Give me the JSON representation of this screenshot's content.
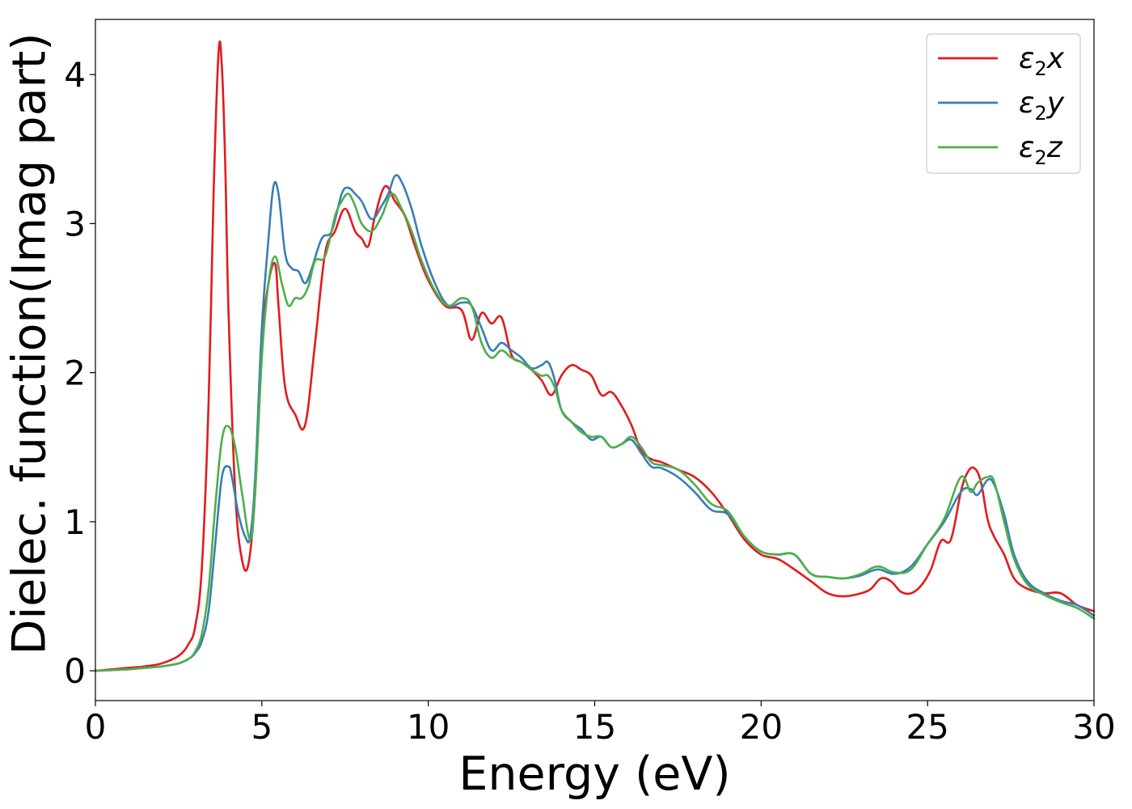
{
  "chart_data": {
    "type": "line",
    "title": "",
    "xlabel": "Energy (eV)",
    "ylabel": "Dielec. function(Imag part)",
    "xlim": [
      0,
      30
    ],
    "ylim": [
      -0.2,
      4.37
    ],
    "xticks": [
      0,
      5,
      10,
      15,
      20,
      25,
      30
    ],
    "xtick_labels": [
      "0",
      "5",
      "10",
      "15",
      "20",
      "25",
      "30"
    ],
    "yticks": [
      0,
      1,
      2,
      3,
      4
    ],
    "ytick_labels": [
      "0",
      "1",
      "2",
      "3",
      "4"
    ],
    "grid": false,
    "legend_position": "top-right",
    "series": [
      {
        "name": "ε₂x",
        "legend_base": "ε",
        "legend_sub": "2",
        "legend_suffix": "x",
        "color": "#e41a1c",
        "x": [
          0,
          1,
          1.5,
          2,
          2.5,
          2.8,
          3.0,
          3.2,
          3.4,
          3.55,
          3.7,
          3.8,
          3.9,
          4.0,
          4.2,
          4.4,
          4.6,
          4.8,
          5.0,
          5.2,
          5.4,
          5.5,
          5.7,
          6.0,
          6.3,
          6.6,
          6.9,
          7.2,
          7.5,
          7.8,
          8.0,
          8.2,
          8.4,
          8.7,
          9.0,
          9.3,
          9.6,
          10.0,
          10.5,
          11.0,
          11.3,
          11.6,
          11.9,
          12.2,
          12.5,
          12.8,
          13.1,
          13.4,
          13.7,
          14.0,
          14.3,
          14.6,
          14.9,
          15.2,
          15.5,
          15.8,
          16.1,
          16.4,
          16.7,
          17.0,
          17.5,
          18.0,
          18.5,
          19.0,
          19.5,
          20.0,
          20.5,
          21.0,
          21.5,
          22.0,
          22.5,
          23.0,
          23.3,
          23.6,
          23.9,
          24.2,
          24.5,
          24.8,
          25.1,
          25.4,
          25.7,
          26.0,
          26.2,
          26.4,
          26.6,
          26.8,
          27.0,
          27.3,
          27.6,
          28.0,
          28.5,
          29.0,
          29.5,
          30.0
        ],
        "y": [
          0.0,
          0.02,
          0.03,
          0.05,
          0.1,
          0.18,
          0.3,
          0.7,
          1.8,
          3.2,
          4.15,
          4.05,
          3.4,
          2.4,
          1.2,
          0.75,
          0.72,
          1.2,
          2.2,
          2.6,
          2.73,
          2.45,
          1.9,
          1.72,
          1.65,
          2.2,
          2.8,
          2.95,
          3.1,
          2.95,
          2.9,
          2.85,
          3.05,
          3.25,
          3.15,
          3.05,
          2.85,
          2.62,
          2.45,
          2.42,
          2.22,
          2.4,
          2.33,
          2.37,
          2.12,
          2.07,
          2.02,
          1.95,
          1.85,
          1.98,
          2.05,
          2.02,
          1.98,
          1.85,
          1.87,
          1.78,
          1.65,
          1.48,
          1.42,
          1.4,
          1.35,
          1.3,
          1.2,
          1.05,
          0.88,
          0.78,
          0.75,
          0.68,
          0.6,
          0.52,
          0.5,
          0.52,
          0.55,
          0.62,
          0.6,
          0.53,
          0.52,
          0.57,
          0.68,
          0.87,
          0.88,
          1.2,
          1.33,
          1.36,
          1.27,
          1.02,
          0.9,
          0.78,
          0.62,
          0.55,
          0.52,
          0.52,
          0.44,
          0.4
        ]
      },
      {
        "name": "ε₂y",
        "legend_base": "ε",
        "legend_sub": "2",
        "legend_suffix": "y",
        "color": "#377eb8",
        "x": [
          0,
          1,
          1.5,
          2,
          2.5,
          2.8,
          3.0,
          3.2,
          3.4,
          3.6,
          3.8,
          4.0,
          4.1,
          4.3,
          4.5,
          4.65,
          4.8,
          5.0,
          5.2,
          5.35,
          5.5,
          5.7,
          5.9,
          6.1,
          6.3,
          6.5,
          6.8,
          7.1,
          7.4,
          7.6,
          7.8,
          8.0,
          8.3,
          8.6,
          8.8,
          9.0,
          9.2,
          9.5,
          9.8,
          10.2,
          10.6,
          11.0,
          11.3,
          11.6,
          11.9,
          12.2,
          12.5,
          12.8,
          13.1,
          13.4,
          13.6,
          13.8,
          14.0,
          14.3,
          14.6,
          14.9,
          15.2,
          15.5,
          15.8,
          16.1,
          16.4,
          16.7,
          17.0,
          17.5,
          18.0,
          18.5,
          19.0,
          19.5,
          20.0,
          20.5,
          21.0,
          21.5,
          22.0,
          22.5,
          23.0,
          23.5,
          24.0,
          24.5,
          25.0,
          25.5,
          26.0,
          26.3,
          26.5,
          26.8,
          27.0,
          27.3,
          27.6,
          28.0,
          28.5,
          29.0,
          29.5,
          30.0
        ],
        "y": [
          0.0,
          0.01,
          0.02,
          0.03,
          0.05,
          0.08,
          0.12,
          0.2,
          0.4,
          0.85,
          1.3,
          1.37,
          1.3,
          1.05,
          0.9,
          0.9,
          1.3,
          2.3,
          2.9,
          3.25,
          3.2,
          2.8,
          2.7,
          2.68,
          2.6,
          2.7,
          2.9,
          2.95,
          3.2,
          3.24,
          3.2,
          3.15,
          3.03,
          3.12,
          3.2,
          3.32,
          3.28,
          3.1,
          2.85,
          2.6,
          2.45,
          2.47,
          2.45,
          2.3,
          2.15,
          2.2,
          2.15,
          2.1,
          2.03,
          2.05,
          2.07,
          1.95,
          1.75,
          1.67,
          1.62,
          1.55,
          1.57,
          1.5,
          1.52,
          1.55,
          1.46,
          1.37,
          1.36,
          1.3,
          1.2,
          1.08,
          1.05,
          0.9,
          0.8,
          0.78,
          0.78,
          0.65,
          0.63,
          0.62,
          0.64,
          0.68,
          0.65,
          0.7,
          0.85,
          1.0,
          1.2,
          1.22,
          1.18,
          1.28,
          1.25,
          1.05,
          0.78,
          0.6,
          0.52,
          0.47,
          0.44,
          0.37
        ]
      },
      {
        "name": "ε₂z",
        "legend_base": "ε",
        "legend_sub": "2",
        "legend_suffix": "z",
        "color": "#4daf4a",
        "x": [
          0,
          1,
          1.5,
          2,
          2.5,
          2.8,
          3.0,
          3.2,
          3.4,
          3.6,
          3.8,
          4.0,
          4.2,
          4.4,
          4.65,
          4.8,
          5.0,
          5.2,
          5.4,
          5.6,
          5.8,
          6.0,
          6.2,
          6.4,
          6.6,
          6.9,
          7.2,
          7.4,
          7.6,
          7.8,
          8.0,
          8.3,
          8.6,
          8.9,
          9.2,
          9.5,
          9.8,
          10.2,
          10.6,
          11.0,
          11.3,
          11.6,
          11.9,
          12.2,
          12.5,
          12.8,
          13.1,
          13.4,
          13.6,
          13.8,
          14.0,
          14.3,
          14.6,
          14.9,
          15.2,
          15.5,
          15.8,
          16.1,
          16.4,
          16.7,
          17.0,
          17.5,
          18.0,
          18.5,
          19.0,
          19.5,
          20.0,
          20.5,
          21.0,
          21.5,
          22.0,
          22.5,
          23.0,
          23.5,
          24.0,
          24.5,
          25.0,
          25.5,
          26.0,
          26.3,
          26.5,
          26.8,
          27.0,
          27.3,
          27.6,
          28.0,
          28.5,
          29.0,
          29.5,
          30.0
        ],
        "y": [
          0.0,
          0.01,
          0.02,
          0.03,
          0.05,
          0.08,
          0.13,
          0.25,
          0.55,
          1.1,
          1.55,
          1.64,
          1.5,
          1.2,
          0.88,
          1.2,
          2.1,
          2.6,
          2.78,
          2.6,
          2.45,
          2.5,
          2.5,
          2.58,
          2.75,
          2.78,
          3.05,
          3.15,
          3.2,
          3.12,
          3.0,
          2.95,
          3.05,
          3.2,
          3.1,
          2.95,
          2.75,
          2.55,
          2.45,
          2.5,
          2.45,
          2.2,
          2.1,
          2.15,
          2.1,
          2.07,
          2.02,
          1.98,
          1.98,
          1.9,
          1.75,
          1.67,
          1.6,
          1.57,
          1.57,
          1.5,
          1.52,
          1.57,
          1.5,
          1.4,
          1.38,
          1.35,
          1.25,
          1.12,
          1.07,
          0.9,
          0.8,
          0.78,
          0.78,
          0.65,
          0.63,
          0.62,
          0.65,
          0.7,
          0.66,
          0.68,
          0.85,
          1.02,
          1.3,
          1.2,
          1.26,
          1.3,
          1.27,
          1.0,
          0.75,
          0.58,
          0.51,
          0.46,
          0.42,
          0.35
        ]
      }
    ]
  }
}
